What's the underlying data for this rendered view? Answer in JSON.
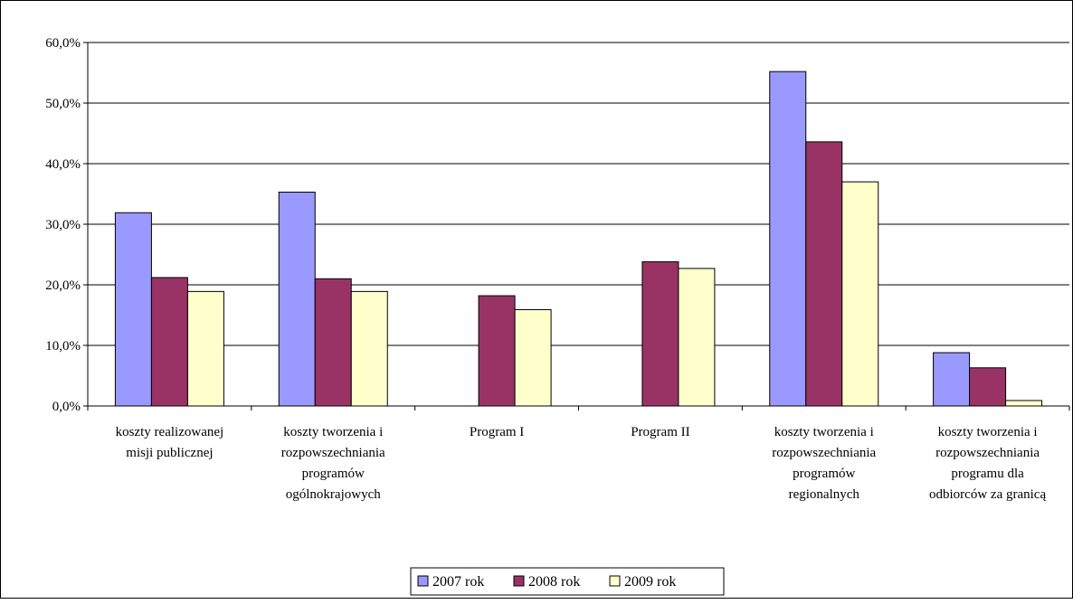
{
  "chart_data": {
    "type": "bar",
    "categories": [
      [
        "koszty realizowanej",
        "misji publicznej"
      ],
      [
        "koszty tworzenia i",
        "rozpowszechniania",
        "programów",
        "ogólnokrajowych"
      ],
      [
        "Program I"
      ],
      [
        "Program II"
      ],
      [
        "koszty tworzenia i",
        "rozpowszechniania",
        "programów",
        "regionalnych"
      ],
      [
        "koszty tworzenia i",
        "rozpowszechniania",
        "programu dla",
        "odbiorców za granicą"
      ]
    ],
    "series": [
      {
        "name": "2007 rok",
        "color": "#9999ff",
        "values": [
          31.9,
          35.3,
          null,
          null,
          55.2,
          8.8
        ]
      },
      {
        "name": "2008 rok",
        "color": "#993366",
        "values": [
          21.2,
          21.0,
          18.2,
          23.8,
          43.6,
          6.3
        ]
      },
      {
        "name": "2009 rok",
        "color": "#ffffcc",
        "values": [
          18.9,
          18.9,
          15.9,
          22.7,
          37.0,
          0.9
        ]
      }
    ],
    "yticks": [
      "0,0%",
      "10,0%",
      "20,0%",
      "30,0%",
      "40,0%",
      "50,0%",
      "60,0%"
    ],
    "ylim": [
      0,
      60
    ],
    "title": "",
    "xlabel": "",
    "ylabel": "",
    "grid": true,
    "legend_position": "bottom"
  }
}
